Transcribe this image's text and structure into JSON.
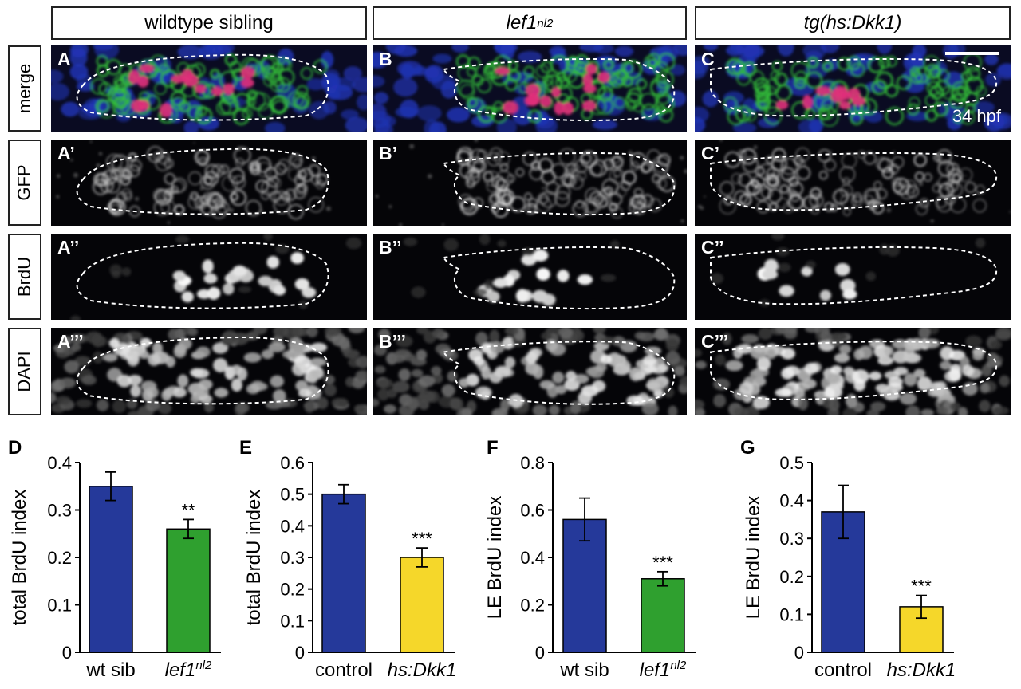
{
  "headers": {
    "wildtype": "wildtype sibling",
    "lef1_base": "lef1",
    "lef1_sup": "nl2",
    "dkk": "tg(hs:Dkk1)"
  },
  "rows": [
    "merge",
    "GFP",
    "BrdU",
    "DAPI"
  ],
  "panel_letters": {
    "A": "A",
    "B": "B",
    "C": "C",
    "A1": "A’",
    "B1": "B’",
    "C1": "C’",
    "A2": "A’’",
    "B2": "B’’",
    "C2": "C’’",
    "A3": "A’’’",
    "B3": "B’’’",
    "C3": "C’’’"
  },
  "stage_label": "34 hpf",
  "colors": {
    "blue_bar": "#25399a",
    "green_bar": "#2fa02f",
    "yellow_bar": "#f5d72a",
    "merge_blue": "#2034b4",
    "merge_green": "#33c03a",
    "merge_magenta": "#e0307a"
  },
  "chart_data": [
    {
      "letter": "D",
      "type": "bar",
      "ylabel": "total BrdU index",
      "ylim": [
        0,
        0.4
      ],
      "yticks": [
        0,
        0.1,
        0.2,
        0.3,
        0.4
      ],
      "ytick_labels": [
        "0",
        "0.1",
        "0.2",
        "0.3",
        "0.4"
      ],
      "categories": [
        "wt sib",
        "lef1"
      ],
      "category_sup": [
        "",
        "nl2"
      ],
      "category_italic": [
        false,
        true
      ],
      "values": [
        0.35,
        0.26
      ],
      "errors": [
        0.03,
        0.02
      ],
      "colors": [
        "#25399a",
        "#2fa02f"
      ],
      "significance": [
        "",
        "**"
      ]
    },
    {
      "letter": "E",
      "type": "bar",
      "ylabel": "total BrdU index",
      "ylim": [
        0,
        0.6
      ],
      "yticks": [
        0,
        0.1,
        0.2,
        0.3,
        0.4,
        0.5,
        0.6
      ],
      "ytick_labels": [
        "0",
        "0.1",
        "0.2",
        "0.3",
        "0.4",
        "0.5",
        "0.6"
      ],
      "categories": [
        "control",
        "hs:Dkk1"
      ],
      "category_sup": [
        "",
        ""
      ],
      "category_italic": [
        false,
        true
      ],
      "values": [
        0.5,
        0.3
      ],
      "errors": [
        0.03,
        0.03
      ],
      "colors": [
        "#25399a",
        "#f5d72a"
      ],
      "significance": [
        "",
        "***"
      ]
    },
    {
      "letter": "F",
      "type": "bar",
      "ylabel": "LE BrdU index",
      "ylim": [
        0,
        0.8
      ],
      "yticks": [
        0,
        0.2,
        0.4,
        0.6,
        0.8
      ],
      "ytick_labels": [
        "0",
        "0.2",
        "0.4",
        "0.6",
        "0.8"
      ],
      "categories": [
        "wt sib",
        "lef1"
      ],
      "category_sup": [
        "",
        "nl2"
      ],
      "category_italic": [
        false,
        true
      ],
      "values": [
        0.56,
        0.31
      ],
      "errors": [
        0.09,
        0.03
      ],
      "colors": [
        "#25399a",
        "#2fa02f"
      ],
      "significance": [
        "",
        "***"
      ]
    },
    {
      "letter": "G",
      "type": "bar",
      "ylabel": "LE BrdU index",
      "ylim": [
        0,
        0.5
      ],
      "yticks": [
        0,
        0.1,
        0.2,
        0.3,
        0.4,
        0.5
      ],
      "ytick_labels": [
        "0",
        "0.1",
        "0.2",
        "0.3",
        "0.4",
        "0.5"
      ],
      "categories": [
        "control",
        "hs:Dkk1"
      ],
      "category_sup": [
        "",
        ""
      ],
      "category_italic": [
        false,
        true
      ],
      "values": [
        0.37,
        0.12
      ],
      "errors": [
        0.07,
        0.03
      ],
      "colors": [
        "#25399a",
        "#f5d72a"
      ],
      "significance": [
        "",
        "***"
      ]
    }
  ]
}
